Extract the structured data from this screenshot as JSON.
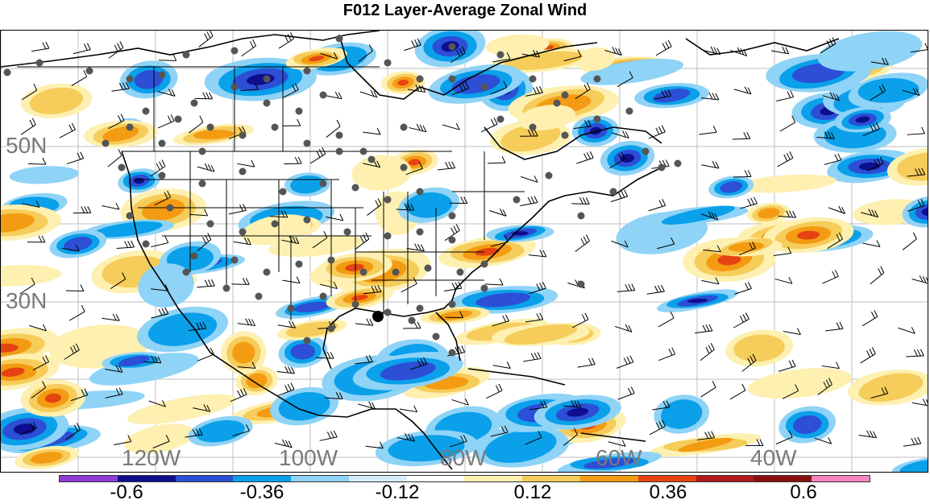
{
  "title": "F012 Layer-Average Zonal Wind",
  "lat_labels": [
    "50N",
    "30N"
  ],
  "lon_labels": [
    "120W",
    "100W",
    "80W",
    "60W",
    "40W"
  ],
  "colorbar": {
    "colors": [
      "#8e3bd6",
      "#0e0e8e",
      "#2c4fd6",
      "#0aa0ea",
      "#8fd3f6",
      "#d6eefc",
      "#ffffff",
      "#fdf0b0",
      "#f6cc5a",
      "#f39b12",
      "#e64312",
      "#b01a1a",
      "#8a1010",
      "#f586c0"
    ],
    "labels": [
      "-0.6",
      "-0.36",
      "-0.12",
      "0.12",
      "0.36",
      "0.6"
    ]
  }
}
